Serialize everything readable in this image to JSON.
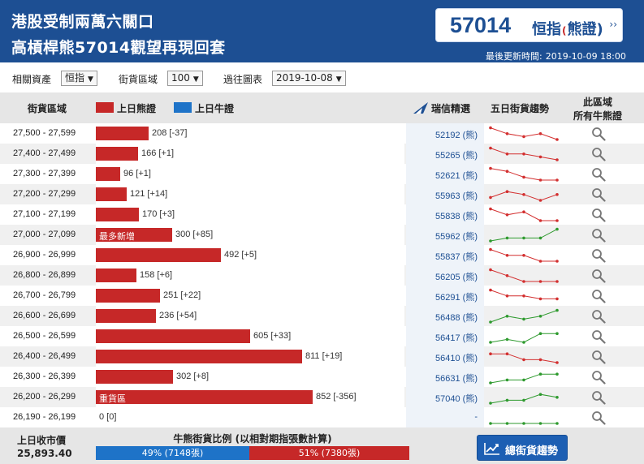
{
  "header": {
    "headline_1": "港股受制兩萬六關口",
    "headline_2": "高槓桿熊57014觀望再現回套",
    "code": "57014",
    "code_name_a": "恒指",
    "code_mark": "(",
    "code_name_b": "熊證)",
    "code_arrow": "››",
    "updated_label": "最後更新時間:",
    "updated_value": "2019-10-09 18:00"
  },
  "filters": {
    "asset_label": "相關資產",
    "asset_value": "恒指",
    "zone_label": "街貨區域",
    "zone_value": "100",
    "past_label": "過往圖表",
    "past_value": "2019-10-08"
  },
  "table_header": {
    "zone": "街貨區域",
    "bear_legend": "上日熊證",
    "bull_legend": "上日牛證",
    "brand": "瑞信精選",
    "trend": "五日街貨趨勢",
    "all_1": "此區域",
    "all_2": "所有牛熊證"
  },
  "colors": {
    "bear": "#c62828",
    "bull": "#1e73c8",
    "header": "#1d4f93"
  },
  "max_bar": 852,
  "rows": [
    {
      "range": "27,500 - 27,599",
      "value": 208,
      "label": "208 [-37]",
      "tag": "",
      "warrant": "52192 (熊)",
      "trend": "down",
      "spark": [
        5,
        3,
        2,
        3,
        1
      ]
    },
    {
      "range": "27,400 - 27,499",
      "value": 166,
      "label": "166 [+1]",
      "tag": "",
      "warrant": "55265 (熊)",
      "trend": "down",
      "spark": [
        5,
        3,
        3,
        2,
        1
      ]
    },
    {
      "range": "27,300 - 27,399",
      "value": 96,
      "label": "96 [+1]",
      "tag": "",
      "warrant": "52621 (熊)",
      "trend": "down",
      "spark": [
        5,
        4,
        2,
        1,
        1
      ]
    },
    {
      "range": "27,200 - 27,299",
      "value": 121,
      "label": "121 [+14]",
      "tag": "",
      "warrant": "55963 (熊)",
      "trend": "down",
      "spark": [
        2,
        4,
        3,
        1,
        3
      ]
    },
    {
      "range": "27,100 - 27,199",
      "value": 170,
      "label": "170 [+3]",
      "tag": "",
      "warrant": "55838 (熊)",
      "trend": "down",
      "spark": [
        5,
        3,
        4,
        1,
        1
      ]
    },
    {
      "range": "27,000 - 27,099",
      "value": 300,
      "label": "300 [+85]",
      "tag": "最多新增",
      "warrant": "55962 (熊)",
      "trend": "up",
      "spark": [
        1,
        2,
        2,
        2,
        5
      ]
    },
    {
      "range": "26,900 - 26,999",
      "value": 492,
      "label": "492 [+5]",
      "tag": "",
      "warrant": "55837 (熊)",
      "trend": "down",
      "spark": [
        5,
        3,
        3,
        1,
        1
      ]
    },
    {
      "range": "26,800 - 26,899",
      "value": 158,
      "label": "158 [+6]",
      "tag": "",
      "warrant": "56205 (熊)",
      "trend": "down",
      "spark": [
        5,
        3,
        1,
        1,
        1
      ]
    },
    {
      "range": "26,700 - 26,799",
      "value": 251,
      "label": "251 [+22]",
      "tag": "",
      "warrant": "56291 (熊)",
      "trend": "down",
      "spark": [
        5,
        3,
        3,
        2,
        2
      ]
    },
    {
      "range": "26,600 - 26,699",
      "value": 236,
      "label": "236 [+54]",
      "tag": "",
      "warrant": "56488 (熊)",
      "trend": "up",
      "spark": [
        1,
        3,
        2,
        3,
        5
      ]
    },
    {
      "range": "26,500 - 26,599",
      "value": 605,
      "label": "605 [+33]",
      "tag": "",
      "warrant": "56417 (熊)",
      "trend": "up",
      "spark": [
        1,
        2,
        1,
        4,
        4
      ]
    },
    {
      "range": "26,400 - 26,499",
      "value": 811,
      "label": "811 [+19]",
      "tag": "",
      "warrant": "56410 (熊)",
      "trend": "down",
      "spark": [
        4,
        4,
        2,
        2,
        1
      ]
    },
    {
      "range": "26,300 - 26,399",
      "value": 302,
      "label": "302 [+8]",
      "tag": "",
      "warrant": "56631 (熊)",
      "trend": "up",
      "spark": [
        1,
        2,
        2,
        4,
        4
      ]
    },
    {
      "range": "26,200 - 26,299",
      "value": 852,
      "label": "852 [-356]",
      "tag": "重貨區",
      "warrant": "57040 (熊)",
      "trend": "up",
      "spark": [
        1,
        2,
        2,
        4,
        3
      ]
    },
    {
      "range": "26,190 - 26,199",
      "value": 0,
      "label": "0 [0]",
      "tag": "",
      "warrant": "-",
      "trend": "up",
      "spark": [
        1,
        1,
        1,
        1,
        1
      ]
    }
  ],
  "footer": {
    "close_label": "上日收市價",
    "close_value": "25,893.40",
    "ratio_title": "牛熊街貨比例 (以相對期指張數計算)",
    "bull_pct": 49,
    "bull_text": "49% (7148張)",
    "bear_pct": 51,
    "bear_text": "51% (7380張)",
    "trend_button": "總街貨趨勢"
  }
}
